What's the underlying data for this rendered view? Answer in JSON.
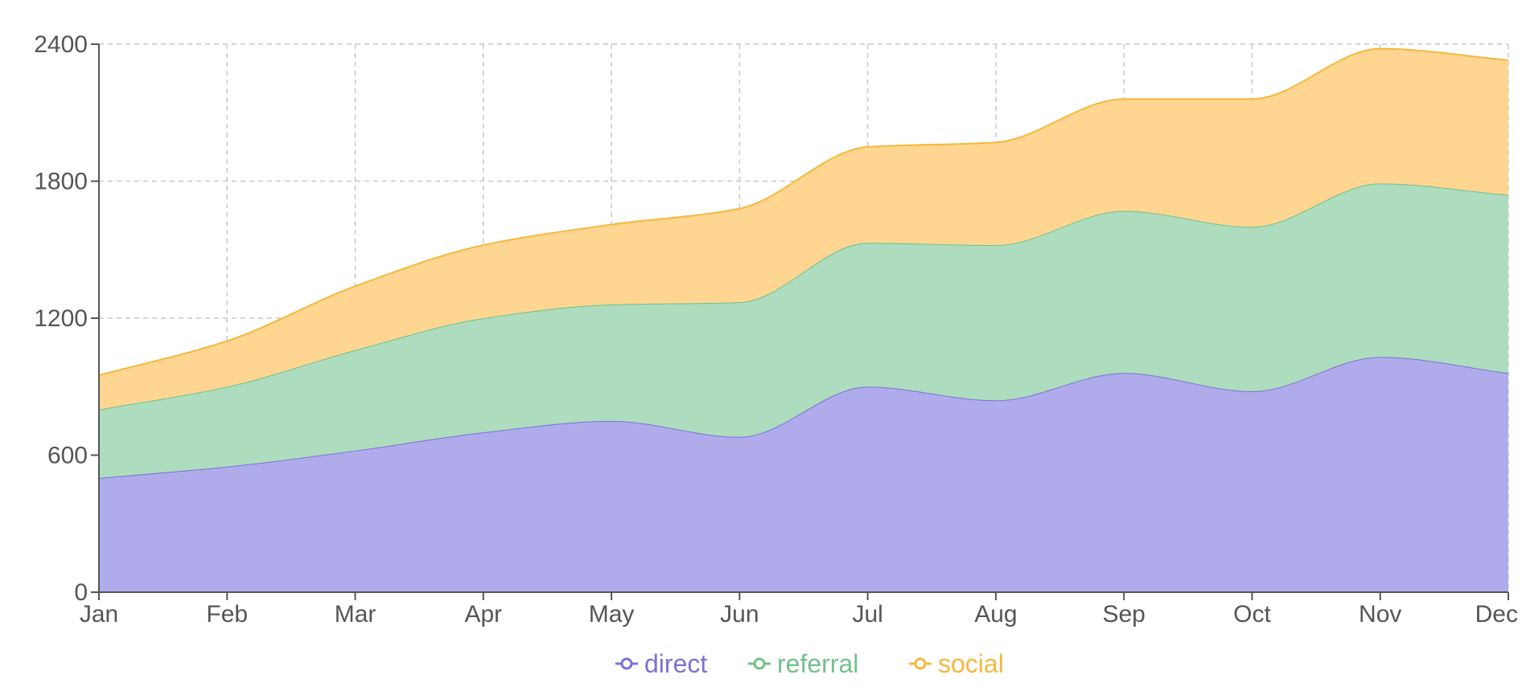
{
  "chart_data": {
    "type": "area",
    "stacked": true,
    "curve": "smooth",
    "categories": [
      "Jan",
      "Feb",
      "Mar",
      "Apr",
      "May",
      "Jun",
      "Jul",
      "Aug",
      "Sep",
      "Oct",
      "Nov",
      "Dec"
    ],
    "series": [
      {
        "name": "direct",
        "color": "#7b72d4",
        "fill": "#b0acec",
        "values": [
          500,
          550,
          620,
          700,
          750,
          680,
          900,
          840,
          960,
          880,
          1030,
          960
        ]
      },
      {
        "name": "referral",
        "color": "#72c08c",
        "fill": "#aedcbe",
        "values": [
          300,
          350,
          440,
          500,
          510,
          590,
          630,
          680,
          710,
          720,
          760,
          780
        ]
      },
      {
        "name": "social",
        "color": "#f5b83d",
        "fill": "#fed692",
        "values": [
          150,
          200,
          280,
          320,
          350,
          410,
          420,
          450,
          490,
          560,
          590,
          590
        ]
      }
    ],
    "ylim": [
      0,
      2400
    ],
    "yticks": [
      0,
      600,
      1200,
      1800,
      2400
    ],
    "grid": true,
    "legend": "bottom-center",
    "title": "",
    "xlabel": "",
    "ylabel": ""
  }
}
